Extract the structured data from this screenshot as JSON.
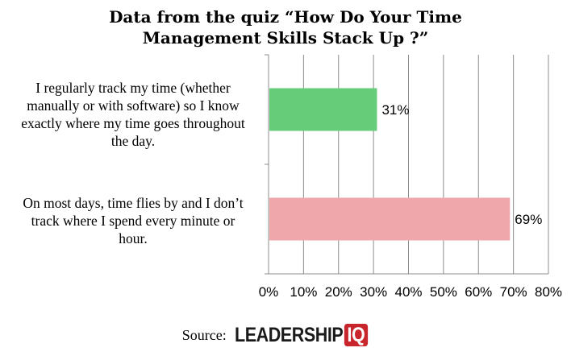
{
  "chart_data": {
    "type": "bar",
    "orientation": "horizontal",
    "title": "Data from the quiz “How Do Your Time Management Skills Stack Up ?”",
    "title_lines": [
      "Data from the quiz “How Do Your Time",
      "Management Skills Stack Up ?”"
    ],
    "categories": [
      "I regularly track my time (whether manually or with software) so I know exactly where my time goes throughout the day.",
      "On most days, time flies by and I don’t track where I spend every minute or hour."
    ],
    "category_lines": [
      [
        "I regularly track my time (whether",
        "manually or with software) so I know",
        "exactly where my time goes throughout",
        "the day."
      ],
      [
        "On most days, time flies by and I don’t",
        "track where I spend every minute or",
        "hour."
      ]
    ],
    "values": [
      31,
      69
    ],
    "data_labels": [
      "31%",
      "69%"
    ],
    "bar_colors": [
      "#66cc7a",
      "#f0a7ab"
    ],
    "xlim": [
      0,
      80
    ],
    "xticks": [
      "0%",
      "10%",
      "20%",
      "30%",
      "40%",
      "50%",
      "60%",
      "70%",
      "80%"
    ],
    "xtick_values": [
      0,
      10,
      20,
      30,
      40,
      50,
      60,
      70,
      80
    ],
    "grid": true,
    "xlabel": "",
    "ylabel": ""
  },
  "source": {
    "label": "Source:",
    "logo_text": "LEADERSHIP",
    "logo_badge": "IQ",
    "logo_badge_color": "#c8252c"
  }
}
